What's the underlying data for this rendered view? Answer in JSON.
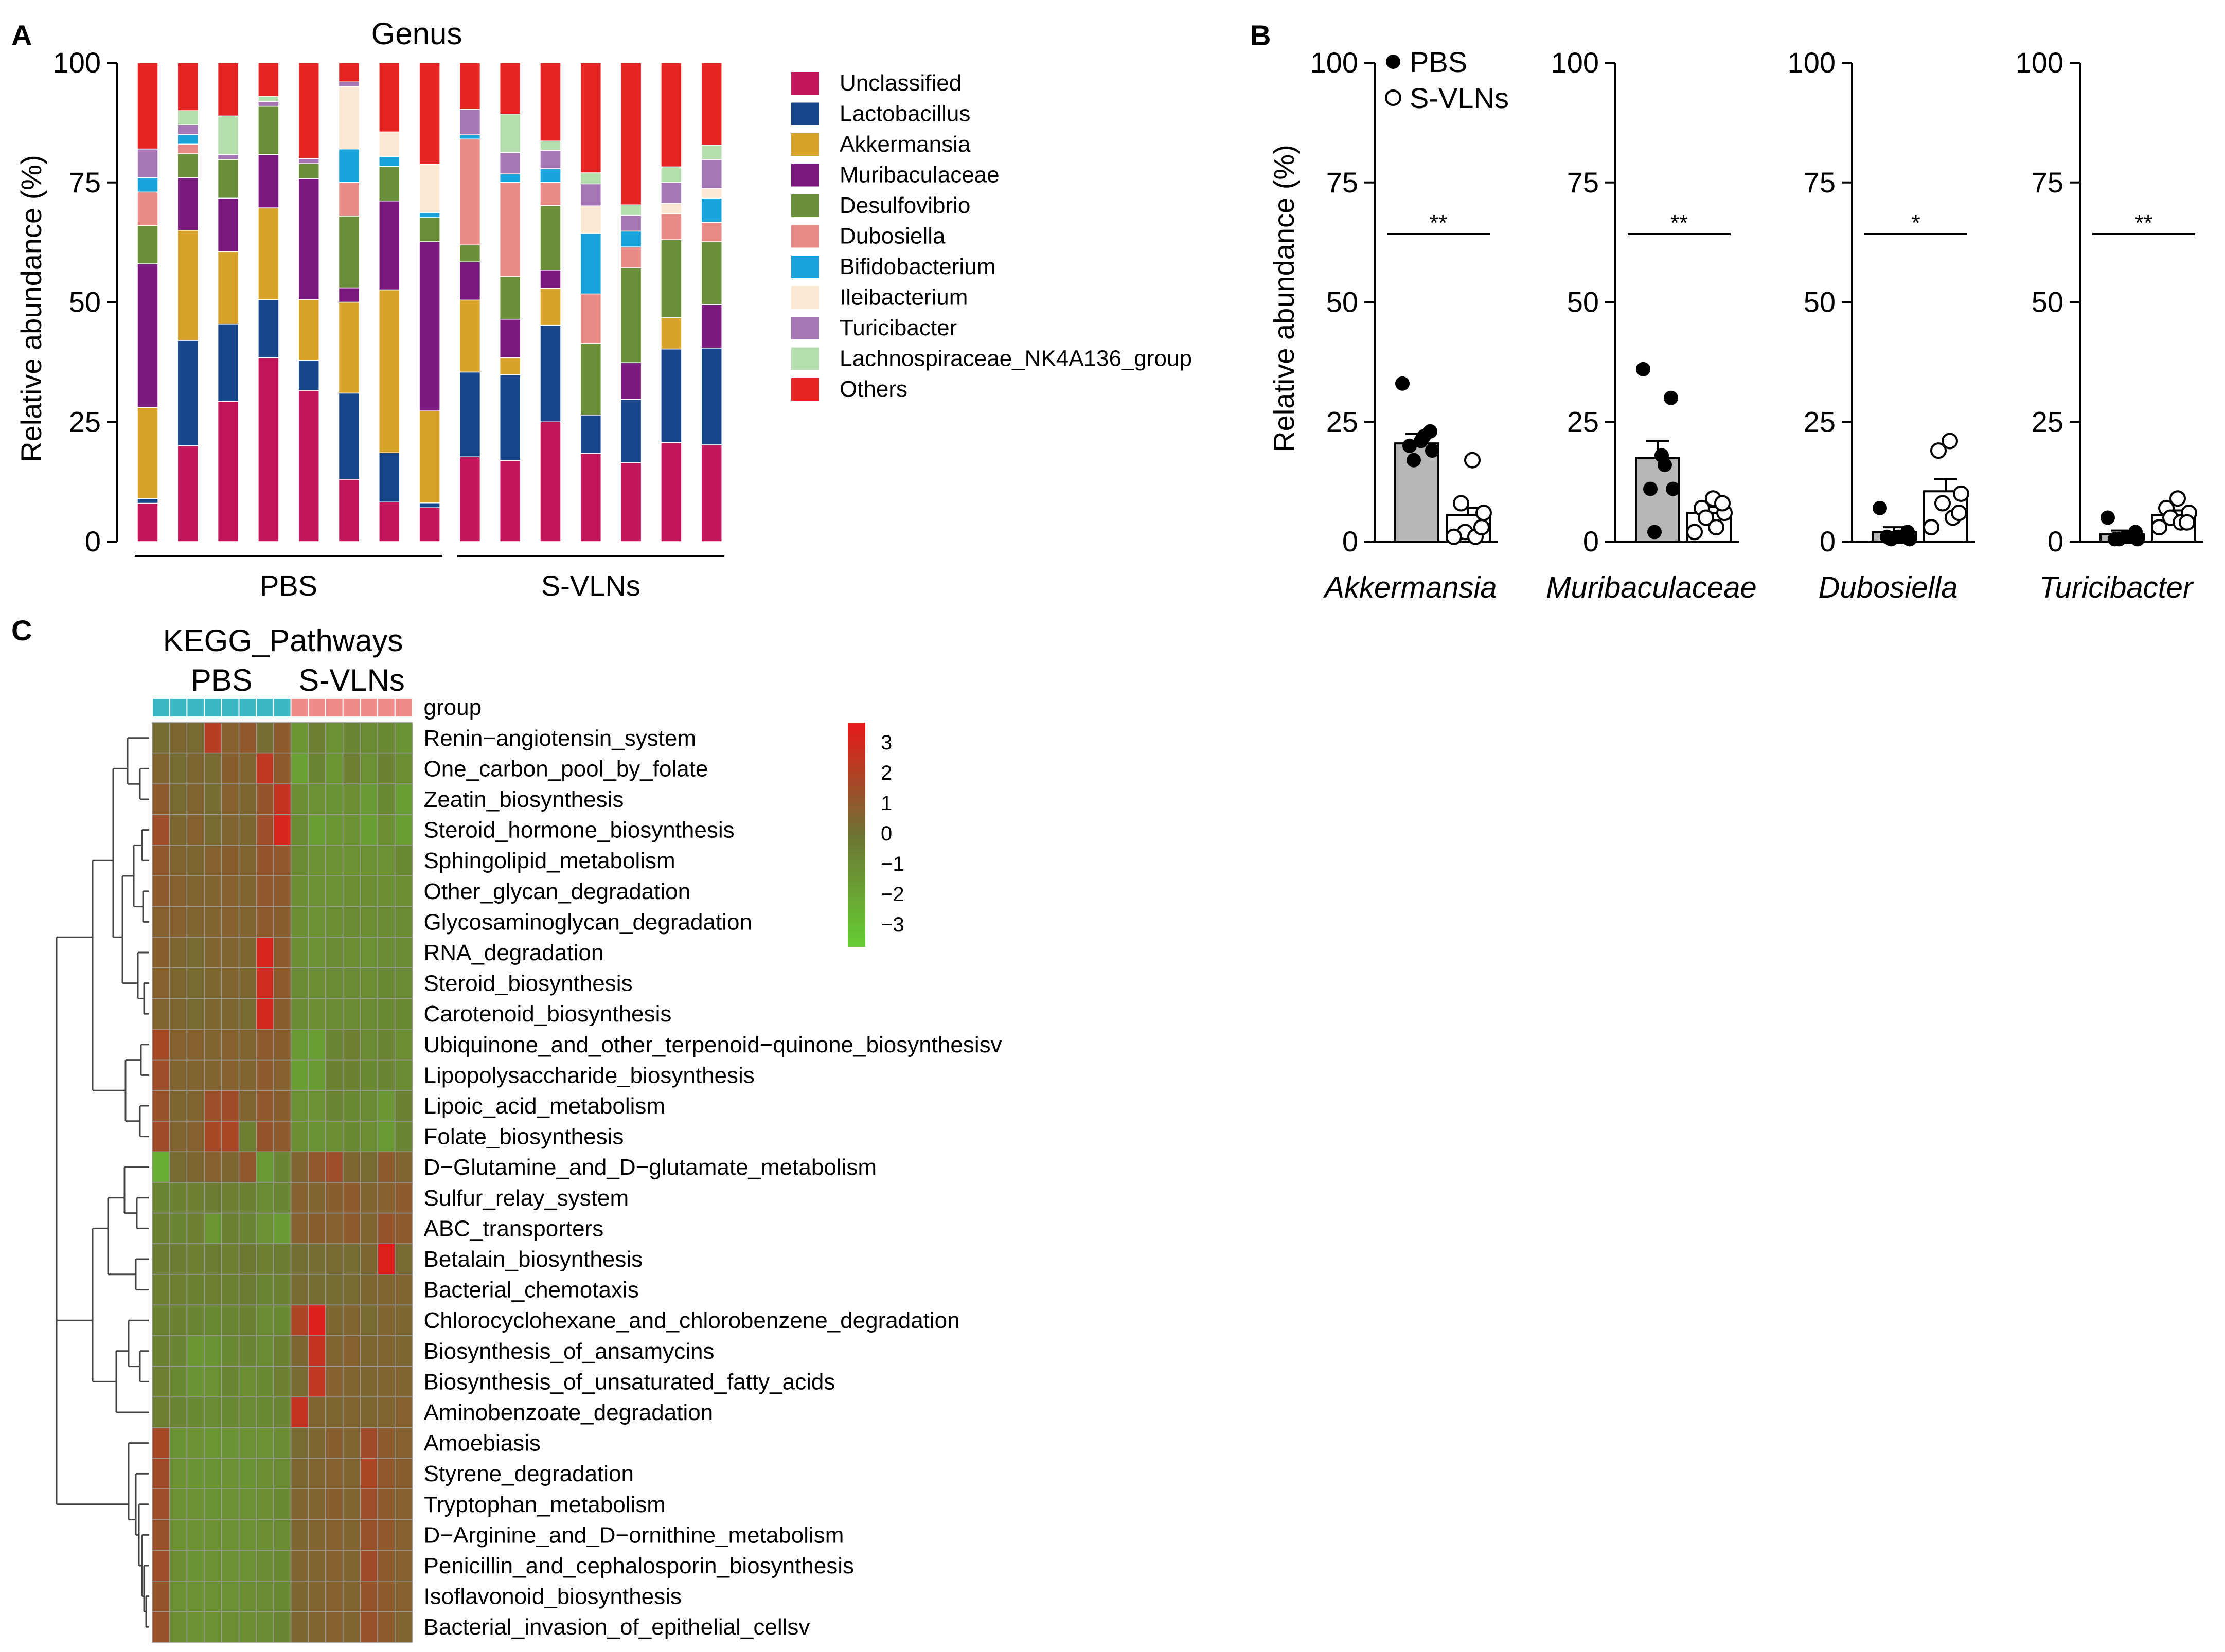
{
  "panels": {
    "A": "A",
    "B": "B",
    "C": "C"
  },
  "chart_data": [
    {
      "type": "bar",
      "subtype": "stacked-percent",
      "title": "Genus",
      "ylabel": "Relative abundance (%)",
      "ylim": [
        0,
        100
      ],
      "yticks": [
        "0",
        "25",
        "50",
        "75",
        "100"
      ],
      "groups": [
        {
          "label": "PBS",
          "samples": 8
        },
        {
          "label": "S-VLNs",
          "samples": 7
        }
      ],
      "series": [
        {
          "name": "Unclassified",
          "color": "#c2185b",
          "values": [
            8,
            20,
            29,
            38,
            30,
            13,
            8,
            7,
            20,
            19,
            26,
            16,
            15,
            19,
            20
          ]
        },
        {
          "name": "Lactobacillus",
          "color": "#17468a",
          "values": [
            1,
            22,
            16,
            12,
            6,
            18,
            10,
            1,
            20,
            20,
            21,
            7,
            12,
            18,
            20
          ]
        },
        {
          "name": "Akkermansia",
          "color": "#d8a32a",
          "values": [
            19,
            23,
            15,
            19,
            12,
            19,
            33,
            19,
            17,
            4,
            8,
            0,
            0,
            6,
            0
          ]
        },
        {
          "name": "Muribaculaceae",
          "color": "#7b1a7e",
          "values": [
            30,
            11,
            11,
            11,
            24,
            3,
            18,
            35,
            9,
            9,
            4,
            0,
            7,
            0,
            9
          ]
        },
        {
          "name": "Desulfovibrio",
          "color": "#6a8f38",
          "values": [
            8,
            5,
            8,
            10,
            3,
            15,
            7,
            5,
            4,
            10,
            14,
            13,
            18,
            15,
            13
          ]
        },
        {
          "name": "Dubosiella",
          "color": "#e88a86",
          "values": [
            7,
            2,
            0,
            0,
            0,
            7,
            0,
            0,
            25,
            22,
            5,
            9,
            4,
            5,
            4
          ]
        },
        {
          "name": "Bifidobacterium",
          "color": "#1ba3dc",
          "values": [
            3,
            2,
            0,
            0,
            0,
            7,
            2,
            1,
            1,
            2,
            3,
            11,
            3,
            0,
            5
          ]
        },
        {
          "name": "Ileibacterium",
          "color": "#fbe9d3",
          "values": [
            0,
            0,
            0,
            0,
            0,
            13,
            5,
            10,
            0,
            0,
            0,
            5,
            0,
            2,
            2
          ]
        },
        {
          "name": "Turicibacter",
          "color": "#a577b4",
          "values": [
            6,
            2,
            1,
            1,
            1,
            1,
            0,
            0,
            6,
            5,
            4,
            4,
            3,
            4,
            6
          ]
        },
        {
          "name": "Lachnospiraceae_NK4A136_group",
          "color": "#b5deae",
          "values": [
            0,
            3,
            8,
            1,
            0,
            0,
            0,
            0,
            0,
            9,
            2,
            2,
            2,
            3,
            3
          ]
        },
        {
          "name": "Others",
          "color": "#e52424",
          "values": [
            18,
            10,
            11,
            7,
            19,
            4,
            14,
            21,
            11,
            12,
            17,
            20,
            27,
            20,
            17
          ]
        }
      ]
    },
    {
      "type": "bar",
      "subtype": "bar-with-points",
      "ylabel": "Relative abundance (%)",
      "ylim": [
        0,
        100
      ],
      "yticks": [
        "0",
        "25",
        "50",
        "75",
        "100"
      ],
      "legend": [
        {
          "label": "PBS",
          "marker": "filled-circle"
        },
        {
          "label": "S-VLNs",
          "marker": "open-circle"
        }
      ],
      "subplots": [
        {
          "taxon": "Akkermansia",
          "significance": "**",
          "pbs_mean": 20.5,
          "pbs_sem": 2.0,
          "svln_mean": 5.5,
          "svln_sem": 1.5,
          "pbs_points": [
            33,
            23,
            21,
            20,
            19,
            17,
            22
          ],
          "svln_points": [
            17,
            8,
            6,
            2,
            1,
            1,
            3
          ]
        },
        {
          "taxon": "Muribaculaceae",
          "significance": "**",
          "pbs_mean": 17.5,
          "pbs_sem": 3.5,
          "svln_mean": 6,
          "svln_sem": 1.2,
          "pbs_points": [
            36,
            30,
            18,
            11,
            11,
            2,
            16
          ],
          "svln_points": [
            9,
            7,
            6,
            5,
            3,
            2,
            8
          ]
        },
        {
          "taxon": "Dubosiella",
          "significance": "*",
          "pbs_mean": 2,
          "pbs_sem": 1,
          "svln_mean": 10.5,
          "svln_sem": 2.5,
          "pbs_points": [
            7,
            2,
            1,
            1,
            0.5,
            0.5,
            1
          ],
          "svln_points": [
            21,
            19,
            10,
            8,
            5,
            3,
            6
          ]
        },
        {
          "taxon": "Turicibacter",
          "significance": "**",
          "pbs_mean": 1.5,
          "pbs_sem": 0.8,
          "svln_mean": 5.5,
          "svln_sem": 1.0,
          "pbs_points": [
            5,
            2,
            1,
            0.5,
            0.5,
            0.5,
            1
          ],
          "svln_points": [
            9,
            7,
            6,
            5,
            4,
            3,
            4
          ]
        }
      ]
    },
    {
      "type": "heatmap",
      "title": "KEGG_Pathways",
      "groups": [
        {
          "label": "PBS",
          "color": "#3cb7c4",
          "samples": 8
        },
        {
          "label": "S-VLNs",
          "color": "#f08b8b",
          "samples": 7
        }
      ],
      "group_annotation_label": "group",
      "color_scale": {
        "min": -3,
        "max": 3,
        "ticks": [
          "3",
          "2",
          "1",
          "0",
          "−1",
          "−2",
          "−3"
        ],
        "low_color": "#66cc33",
        "mid_color": "#6d7333",
        "high_color": "#e61a1a"
      },
      "rows": [
        "Renin−angiotensin_system",
        "One_carbon_pool_by_folate",
        "Zeatin_biosynthesis",
        "Steroid_hormone_biosynthesis",
        "Sphingolipid_metabolism",
        "Other_glycan_degradation",
        "Glycosaminoglycan_degradation",
        "RNA_degradation",
        "Steroid_biosynthesis",
        "Carotenoid_biosynthesis",
        "Ubiquinone_and_other_terpenoid−quinone_biosynthesisv",
        "Lipopolysaccharide_biosynthesis",
        "Lipoic_acid_metabolism",
        "Folate_biosynthesis",
        "D−Glutamine_and_D−glutamate_metabolism",
        "Sulfur_relay_system",
        "ABC_transporters",
        "Betalain_biosynthesis",
        "Bacterial_chemotaxis",
        "Chlorocyclohexane_and_chlorobenzene_degradation",
        "Biosynthesis_of_ansamycins",
        "Biosynthesis_of_unsaturated_fatty_acids",
        "Aminobenzoate_degradation",
        "Amoebiasis",
        "Styrene_degradation",
        "Tryptophan_metabolism",
        "D−Arginine_and_D−ornithine_metabolism",
        "Penicillin_and_cephalosporin_biosynthesis",
        "Isoflavonoid_biosynthesis",
        "Bacterial_invasion_of_epithelial_cellsv"
      ],
      "values": [
        [
          0.2,
          0.4,
          0.3,
          1.8,
          0.6,
          0.9,
          0.2,
          0.8,
          -1.2,
          -0.4,
          -1.0,
          -0.6,
          -0.8,
          -0.7,
          -1.1
        ],
        [
          0.5,
          0.2,
          0.4,
          0.3,
          0.7,
          0.5,
          2.0,
          0.8,
          -1.6,
          -0.6,
          -1.2,
          -0.4,
          -1.0,
          -0.5,
          -0.9
        ],
        [
          0.8,
          0.3,
          0.5,
          0.2,
          0.6,
          0.4,
          1.0,
          2.2,
          -0.9,
          -1.0,
          -1.1,
          -0.9,
          -1.3,
          -0.7,
          -1.4
        ],
        [
          1.2,
          0.4,
          0.6,
          0.3,
          0.5,
          0.4,
          1.2,
          2.6,
          -0.8,
          -1.4,
          -1.2,
          -1.0,
          -1.5,
          -0.9,
          -1.4
        ],
        [
          0.9,
          0.5,
          0.4,
          0.6,
          0.7,
          0.5,
          1.0,
          0.9,
          -0.8,
          -1.0,
          -1.0,
          -1.0,
          -1.0,
          -1.0,
          -0.7
        ],
        [
          0.8,
          0.6,
          0.5,
          0.5,
          0.6,
          0.5,
          0.9,
          0.8,
          -0.9,
          -1.0,
          -1.0,
          -0.9,
          -0.9,
          -0.9,
          -0.9
        ],
        [
          0.6,
          0.6,
          0.5,
          0.5,
          0.6,
          0.5,
          0.8,
          0.7,
          -0.9,
          -1.0,
          -0.9,
          -0.8,
          -0.9,
          -0.8,
          -0.8
        ],
        [
          0.7,
          0.4,
          0.3,
          0.5,
          0.5,
          0.4,
          2.6,
          0.8,
          -0.9,
          -1.0,
          -0.8,
          -0.9,
          -1.0,
          -0.8,
          -0.8
        ],
        [
          0.6,
          0.4,
          0.3,
          0.4,
          0.5,
          0.4,
          2.4,
          0.8,
          -0.8,
          -0.9,
          -0.8,
          -0.8,
          -0.9,
          -0.7,
          -0.8
        ],
        [
          0.5,
          0.4,
          0.3,
          0.4,
          0.4,
          0.3,
          2.5,
          0.7,
          -0.8,
          -0.9,
          -0.8,
          -0.8,
          -0.8,
          -0.7,
          -0.7
        ],
        [
          1.4,
          0.6,
          0.6,
          0.5,
          0.6,
          0.5,
          0.8,
          0.7,
          -1.3,
          -1.4,
          -0.6,
          -0.4,
          -0.8,
          -0.6,
          -0.9
        ],
        [
          1.2,
          0.5,
          0.5,
          0.5,
          0.6,
          0.5,
          0.8,
          0.6,
          -1.4,
          -1.3,
          -0.5,
          -0.5,
          -0.7,
          -0.6,
          -0.8
        ],
        [
          1.1,
          0.4,
          0.5,
          1.2,
          1.3,
          0.5,
          0.9,
          0.7,
          -1.0,
          -1.0,
          -0.6,
          -0.7,
          -0.8,
          -1.2,
          -0.5
        ],
        [
          1.3,
          0.5,
          0.6,
          1.4,
          1.5,
          -0.4,
          1.0,
          0.8,
          -0.9,
          -1.1,
          -0.9,
          -0.7,
          -0.9,
          -1.3,
          -0.6
        ],
        [
          -2.0,
          0.3,
          0.4,
          0.6,
          0.4,
          0.9,
          -1.3,
          -0.6,
          0.5,
          0.9,
          1.2,
          0.4,
          0.3,
          0.8,
          0.5
        ],
        [
          -0.6,
          -0.5,
          -0.4,
          -0.3,
          -0.4,
          -0.5,
          -0.8,
          -0.6,
          0.6,
          0.5,
          0.7,
          0.8,
          0.5,
          0.6,
          0.8
        ],
        [
          -0.5,
          -0.6,
          -0.4,
          -1.2,
          -0.5,
          -0.6,
          -1.0,
          -1.3,
          0.6,
          0.7,
          0.6,
          0.8,
          0.5,
          1.0,
          0.8
        ],
        [
          -0.3,
          -0.3,
          -0.4,
          -0.3,
          -0.4,
          -0.2,
          -0.4,
          -0.3,
          0.1,
          0.2,
          0.3,
          0.2,
          0.4,
          2.8,
          0.3
        ],
        [
          -0.4,
          -0.4,
          -0.5,
          -0.4,
          -0.5,
          -0.3,
          -0.6,
          -0.5,
          0.3,
          0.2,
          0.2,
          0.3,
          0.4,
          0.5,
          0.5
        ],
        [
          -0.5,
          -0.5,
          -0.6,
          -0.7,
          -0.6,
          -0.5,
          -0.8,
          -0.7,
          1.6,
          2.8,
          0.4,
          0.5,
          0.3,
          0.5,
          0.4
        ],
        [
          -0.5,
          -0.6,
          -1.2,
          -1.1,
          -0.7,
          -0.6,
          -0.8,
          -0.5,
          0.4,
          2.2,
          0.5,
          0.6,
          0.4,
          0.5,
          0.4
        ],
        [
          -0.4,
          -0.7,
          -1.1,
          -1.0,
          -0.6,
          -0.9,
          -0.7,
          -0.4,
          0.3,
          2.0,
          0.6,
          0.5,
          0.4,
          0.5,
          0.5
        ],
        [
          -0.4,
          -0.6,
          -0.7,
          -0.8,
          -0.7,
          -0.8,
          -0.7,
          -0.6,
          2.2,
          0.5,
          0.4,
          0.5,
          0.4,
          0.5,
          0.6
        ],
        [
          1.4,
          -1.1,
          -1.0,
          -1.2,
          -1.1,
          -1.0,
          -1.0,
          -0.8,
          0.3,
          0.4,
          0.7,
          0.5,
          1.3,
          0.8,
          0.6
        ],
        [
          1.3,
          -1.0,
          -1.1,
          -1.1,
          -1.0,
          -1.1,
          -0.9,
          -0.8,
          0.4,
          0.5,
          0.6,
          0.5,
          1.5,
          0.9,
          0.7
        ],
        [
          1.2,
          -1.0,
          -1.0,
          -1.1,
          -1.0,
          -1.0,
          -0.9,
          -0.7,
          0.5,
          0.5,
          0.7,
          0.5,
          1.2,
          0.8,
          0.6
        ],
        [
          1.1,
          -1.0,
          -1.0,
          -1.0,
          -1.0,
          -1.0,
          -0.9,
          -0.8,
          0.4,
          0.5,
          0.6,
          0.5,
          1.1,
          0.9,
          0.6
        ],
        [
          1.2,
          -0.9,
          -1.1,
          -1.0,
          -1.0,
          -1.0,
          -0.8,
          -0.7,
          0.5,
          0.5,
          0.6,
          0.5,
          1.3,
          0.8,
          0.6
        ],
        [
          1.0,
          -1.0,
          -1.0,
          -1.0,
          -1.0,
          -0.9,
          -0.8,
          -0.7,
          0.4,
          0.5,
          0.6,
          0.5,
          1.0,
          0.8,
          0.6
        ],
        [
          1.1,
          -0.9,
          -1.0,
          -1.0,
          -0.9,
          -0.9,
          -0.8,
          -0.6,
          0.4,
          0.5,
          0.6,
          0.5,
          1.1,
          0.8,
          0.5
        ]
      ]
    }
  ]
}
